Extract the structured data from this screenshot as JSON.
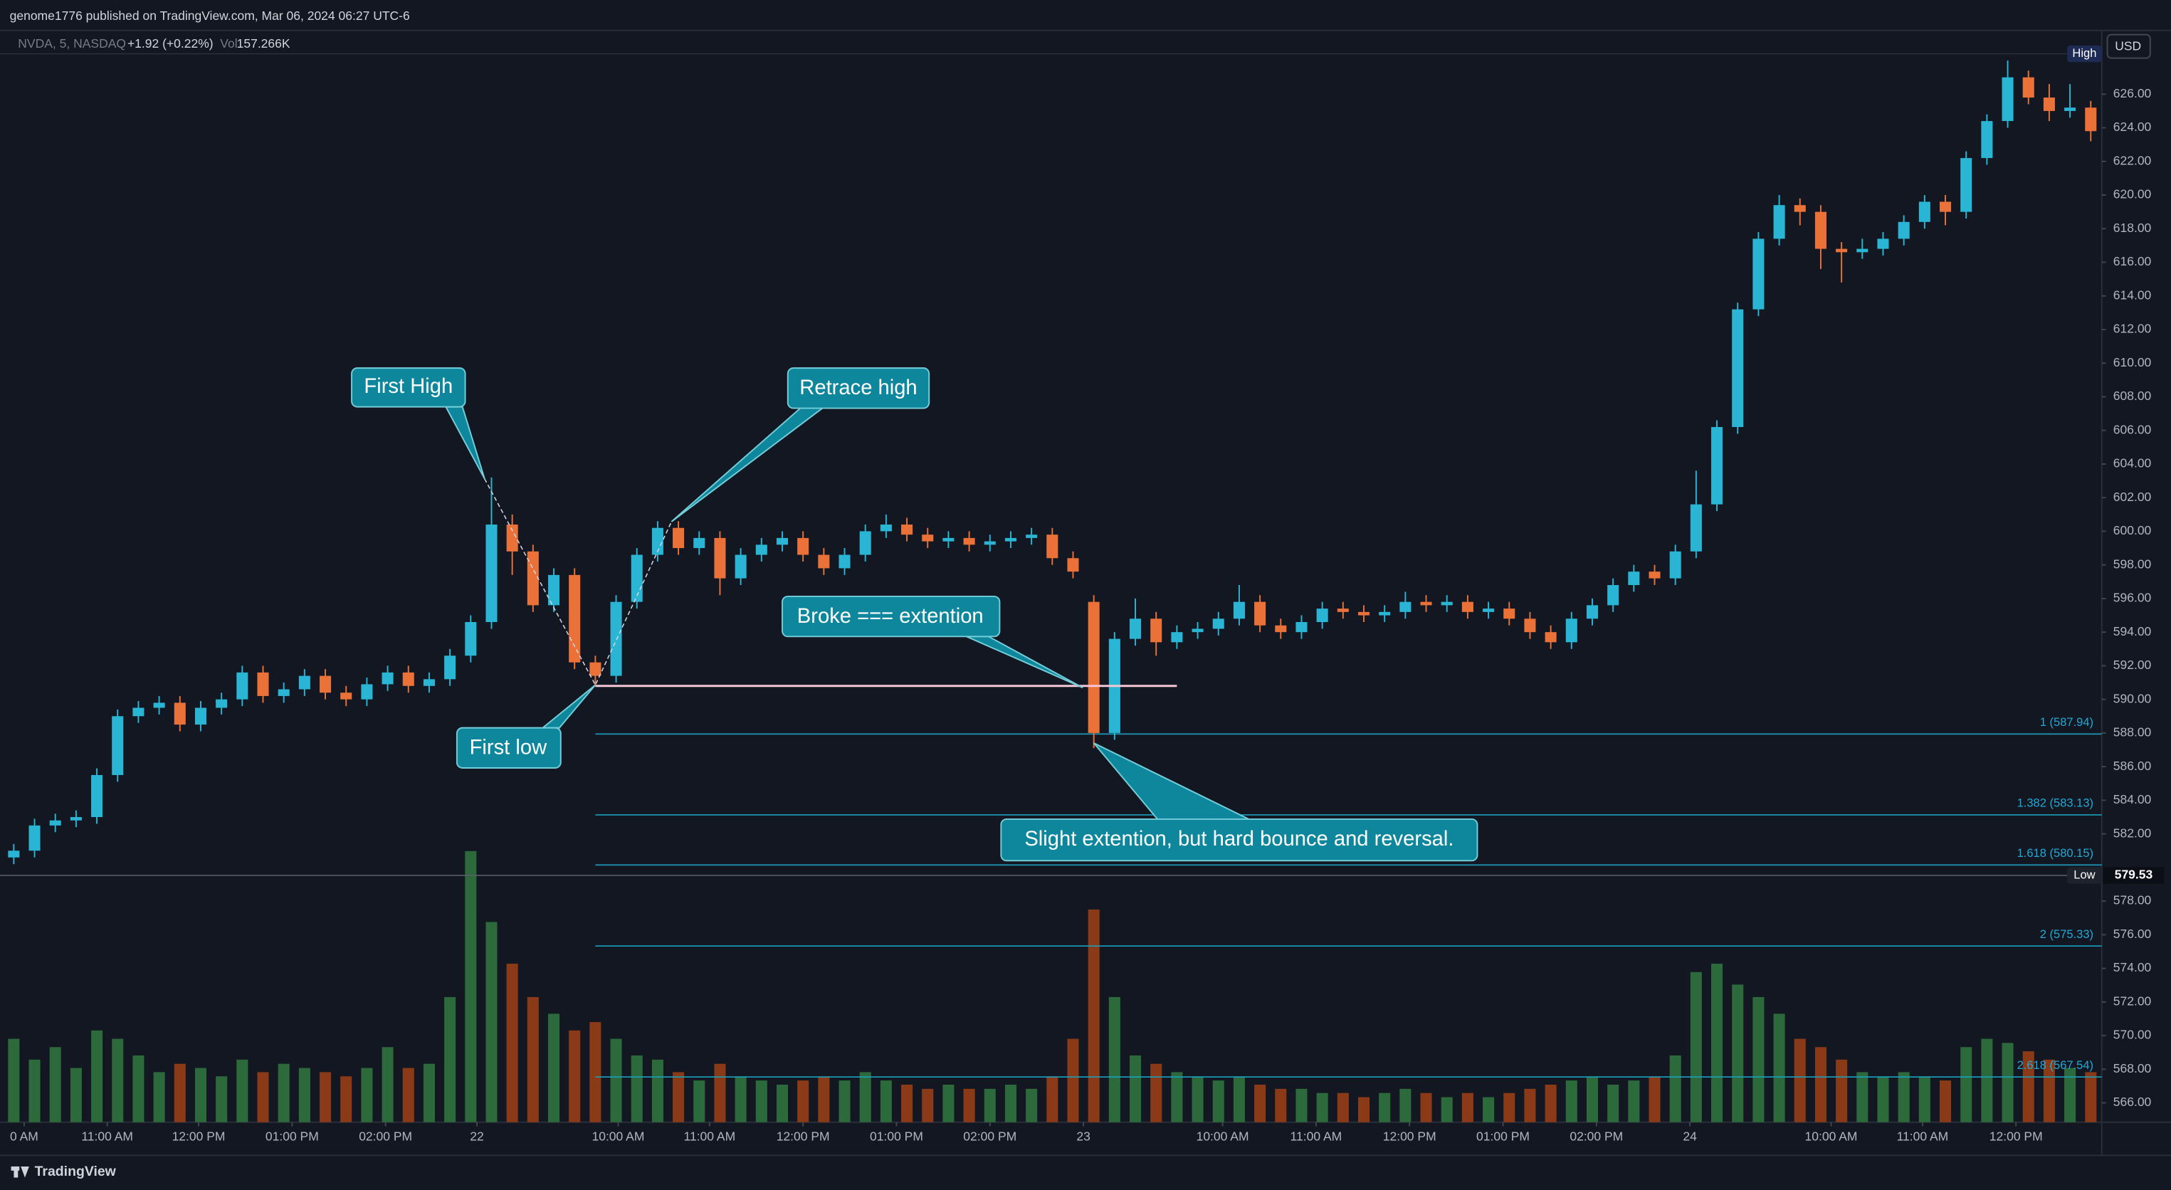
{
  "header": "genome1776 published on TradingView.com, Mar 06, 2024 06:27 UTC-6",
  "chart_data": {
    "type": "candlestick",
    "symbol": "NVDA, 5, NASDAQ",
    "change": "+1.92 (+0.22%)",
    "volume_label": "Vol",
    "last_volume": "157.266K",
    "currency": "USD",
    "open": [
      580.6,
      581,
      582.5,
      582.8,
      583,
      585.5,
      589,
      589.5,
      589.8,
      588.5,
      589.5,
      590,
      591.6,
      590.2,
      590.6,
      591.4,
      590.4,
      590,
      590.9,
      591.6,
      590.8,
      591.2,
      592.6,
      594.6,
      600.4,
      598.8,
      595.6,
      597.4,
      592.2,
      591.4,
      595.8,
      598.6,
      600.2,
      599,
      599.6,
      597.2,
      598.6,
      599.2,
      599.6,
      598.6,
      597.8,
      598.6,
      600,
      600.4,
      599.8,
      599.4,
      599.6,
      599.2,
      599.4,
      599.6,
      599.8,
      598.4,
      595.8,
      588,
      593.6,
      594.8,
      593.4,
      594,
      594.2,
      594.8,
      595.8,
      594.4,
      594,
      594.6,
      595.4,
      595.2,
      595,
      595.2,
      595.8,
      595.6,
      595.8,
      595.2,
      595.4,
      594.8,
      594,
      593.4,
      594.8,
      595.6,
      596.8,
      597.6,
      597.2,
      598.8,
      601.6,
      606.2,
      613.2,
      617.4,
      619.4,
      619,
      616.8,
      616.6,
      616.8,
      617.4,
      618.4,
      619.6,
      619,
      622.2,
      624.4,
      627,
      625.8,
      625,
      625.2
    ],
    "high": [
      581.4,
      582.9,
      583.2,
      583.4,
      585.9,
      589.4,
      589.9,
      590.2,
      590.2,
      589.9,
      590.4,
      592,
      592,
      591,
      591.8,
      591.8,
      590.8,
      591.3,
      592,
      592,
      591.6,
      593,
      595,
      603.2,
      601,
      599.2,
      597.8,
      597.8,
      592.6,
      596.2,
      599,
      600.6,
      600.6,
      600,
      600,
      599,
      599.6,
      600,
      600,
      599,
      599,
      600.4,
      601,
      600.8,
      600.2,
      600,
      600,
      599.8,
      600,
      600.2,
      600.2,
      598.8,
      596.2,
      594,
      596,
      595.2,
      594.4,
      594.6,
      595.2,
      596.8,
      596.2,
      594.8,
      595,
      595.8,
      595.8,
      595.6,
      595.6,
      596.4,
      596.2,
      596.2,
      596.2,
      595.8,
      595.8,
      595.2,
      594.4,
      595.2,
      596,
      597.2,
      598,
      598,
      599.2,
      603.6,
      606.6,
      613.6,
      617.8,
      620,
      619.8,
      619.4,
      617.2,
      617.4,
      617.8,
      618.8,
      620,
      620,
      622.6,
      624.8,
      628,
      627.4,
      626.6,
      626.6,
      625.6
    ],
    "low": [
      580.2,
      580.6,
      582.1,
      582.4,
      582.6,
      585.1,
      588.6,
      589.1,
      588.1,
      588.1,
      589.1,
      589.6,
      589.8,
      589.8,
      590.2,
      590,
      589.6,
      589.6,
      590.5,
      590.4,
      590.4,
      590.8,
      592.2,
      594.2,
      597.4,
      595.2,
      595.2,
      591.8,
      590.8,
      591,
      595.4,
      598.2,
      598.6,
      598.6,
      596.2,
      596.8,
      598.2,
      598.8,
      598.2,
      597.4,
      597.4,
      598.2,
      599.6,
      599.4,
      599,
      599,
      598.8,
      598.8,
      599,
      599.2,
      598,
      597.2,
      587.1,
      587.6,
      593.2,
      592.6,
      593,
      593.6,
      593.8,
      594.4,
      594,
      593.6,
      593.6,
      594.2,
      594.8,
      594.6,
      594.6,
      594.8,
      595.2,
      595.2,
      594.8,
      594.8,
      594.4,
      593.6,
      593,
      593,
      594.4,
      595.2,
      596.4,
      596.8,
      596.8,
      598.4,
      601.2,
      605.8,
      612.8,
      617,
      618.2,
      615.6,
      614.8,
      616.2,
      616.4,
      617,
      618,
      618.2,
      618.6,
      621.8,
      624,
      625.4,
      624.4,
      624.6,
      623.2
    ],
    "close": [
      581,
      582.5,
      582.8,
      583,
      585.5,
      589,
      589.5,
      589.8,
      588.5,
      589.5,
      590,
      591.6,
      590.2,
      590.6,
      591.4,
      590.4,
      590,
      590.9,
      591.6,
      590.8,
      591.2,
      592.6,
      594.6,
      600.4,
      598.8,
      595.6,
      597.4,
      592.2,
      591.4,
      595.8,
      598.6,
      600.2,
      599,
      599.6,
      597.2,
      598.6,
      599.2,
      599.6,
      598.6,
      597.8,
      598.6,
      600,
      600.4,
      599.8,
      599.4,
      599.6,
      599.2,
      599.4,
      599.6,
      599.8,
      598.4,
      597.6,
      588,
      593.6,
      594.8,
      593.4,
      594,
      594.2,
      594.8,
      595.8,
      594.4,
      594,
      594.6,
      595.4,
      595.2,
      595,
      595.2,
      595.8,
      595.6,
      595.8,
      595.2,
      595.4,
      594.8,
      594,
      593.4,
      594.8,
      595.6,
      596.8,
      597.6,
      597.2,
      598.8,
      601.6,
      606.2,
      613.2,
      617.4,
      619.4,
      619,
      616.8,
      616.6,
      616.8,
      617.4,
      618.4,
      619.6,
      619,
      622.2,
      624.4,
      627,
      625.8,
      625,
      625.2,
      623.8
    ],
    "volume": [
      200,
      150,
      180,
      130,
      220,
      200,
      160,
      120,
      140,
      130,
      110,
      150,
      120,
      140,
      130,
      120,
      110,
      130,
      180,
      130,
      140,
      300,
      650,
      480,
      380,
      300,
      260,
      220,
      240,
      200,
      160,
      150,
      120,
      100,
      140,
      110,
      100,
      90,
      100,
      110,
      100,
      120,
      100,
      90,
      80,
      90,
      80,
      80,
      90,
      80,
      110,
      200,
      510,
      300,
      160,
      140,
      120,
      110,
      100,
      110,
      90,
      80,
      80,
      70,
      70,
      60,
      70,
      80,
      70,
      60,
      70,
      60,
      70,
      80,
      90,
      100,
      110,
      90,
      100,
      110,
      160,
      360,
      380,
      330,
      300,
      260,
      200,
      180,
      150,
      120,
      110,
      120,
      110,
      100,
      180,
      200,
      190,
      170,
      150,
      130,
      120
    ],
    "up_color": "#2bb5d4",
    "down_color": "#ea7239",
    "volume_up_color": "#2c6a3b",
    "volume_down_color": "#8b3a17",
    "xlim": [
      -0.13,
      100.53
    ],
    "ylim": [
      564.85,
      629.79
    ],
    "volume_ylim": [
      0,
      700
    ],
    "xticks": [
      {
        "value": 0.5,
        "label": "0 AM"
      },
      {
        "value": 4.5,
        "label": "11:00 AM"
      },
      {
        "value": 8.9,
        "label": "12:00 PM"
      },
      {
        "value": 13.4,
        "label": "01:00 PM"
      },
      {
        "value": 17.9,
        "label": "02:00 PM"
      },
      {
        "value": 22.3,
        "label": "22"
      },
      {
        "value": 29.1,
        "label": "10:00 AM"
      },
      {
        "value": 33.5,
        "label": "11:00 AM"
      },
      {
        "value": 38,
        "label": "12:00 PM"
      },
      {
        "value": 42.5,
        "label": "01:00 PM"
      },
      {
        "value": 47,
        "label": "02:00 PM"
      },
      {
        "value": 51.5,
        "label": "23"
      },
      {
        "value": 58.2,
        "label": "10:00 AM"
      },
      {
        "value": 62.7,
        "label": "11:00 AM"
      },
      {
        "value": 67.2,
        "label": "12:00 PM"
      },
      {
        "value": 71.7,
        "label": "01:00 PM"
      },
      {
        "value": 76.2,
        "label": "02:00 PM"
      },
      {
        "value": 80.7,
        "label": "24"
      },
      {
        "value": 87.5,
        "label": "10:00 AM"
      },
      {
        "value": 91.9,
        "label": "11:00 AM"
      },
      {
        "value": 96.4,
        "label": "12:00 PM"
      }
    ],
    "yticks": [
      {
        "value": 566,
        "label": "566.00"
      },
      {
        "value": 568,
        "label": "568.00"
      },
      {
        "value": 570,
        "label": "570.00"
      },
      {
        "value": 572,
        "label": "572.00"
      },
      {
        "value": 574,
        "label": "574.00"
      },
      {
        "value": 576,
        "label": "576.00"
      },
      {
        "value": 578,
        "label": "578.00"
      },
      {
        "value": 582,
        "label": "582.00"
      },
      {
        "value": 584,
        "label": "584.00"
      },
      {
        "value": 586,
        "label": "586.00"
      },
      {
        "value": 588,
        "label": "588.00"
      },
      {
        "value": 590,
        "label": "590.00"
      },
      {
        "value": 592,
        "label": "592.00"
      },
      {
        "value": 594,
        "label": "594.00"
      },
      {
        "value": 596,
        "label": "596.00"
      },
      {
        "value": 598,
        "label": "598.00"
      },
      {
        "value": 600,
        "label": "600.00"
      },
      {
        "value": 602,
        "label": "602.00"
      },
      {
        "value": 604,
        "label": "604.00"
      },
      {
        "value": 606,
        "label": "606.00"
      },
      {
        "value": 608,
        "label": "608.00"
      },
      {
        "value": 610,
        "label": "610.00"
      },
      {
        "value": 612,
        "label": "612.00"
      },
      {
        "value": 614,
        "label": "614.00"
      },
      {
        "value": 616,
        "label": "616.00"
      },
      {
        "value": 618,
        "label": "618.00"
      },
      {
        "value": 620,
        "label": "620.00"
      },
      {
        "value": 622,
        "label": "622.00"
      },
      {
        "value": 624,
        "label": "624.00"
      },
      {
        "value": 626,
        "label": "626.00"
      }
    ],
    "high_marker": {
      "label": "High",
      "price": 628.4
    },
    "low_marker": {
      "label": "Low",
      "price": 579.53
    },
    "support_line": {
      "price": 590.8,
      "color": "#f5c6d6"
    },
    "fib_color": "#1a9fbd",
    "fib_levels": [
      {
        "value": 587.94,
        "label": "1 (587.94)"
      },
      {
        "value": 583.13,
        "label": "1.382 (583.13)"
      },
      {
        "value": 580.15,
        "label": "1.618 (580.15)"
      },
      {
        "value": 575.33,
        "label": "2 (575.33)"
      },
      {
        "value": 567.54,
        "label": "2.618 (567.54)"
      }
    ],
    "annotations": [
      "First High",
      "Retrace high",
      "Broke === extention",
      "First low",
      "Slight extention, but hard bounce and reversal."
    ]
  },
  "footer": "TradingView"
}
